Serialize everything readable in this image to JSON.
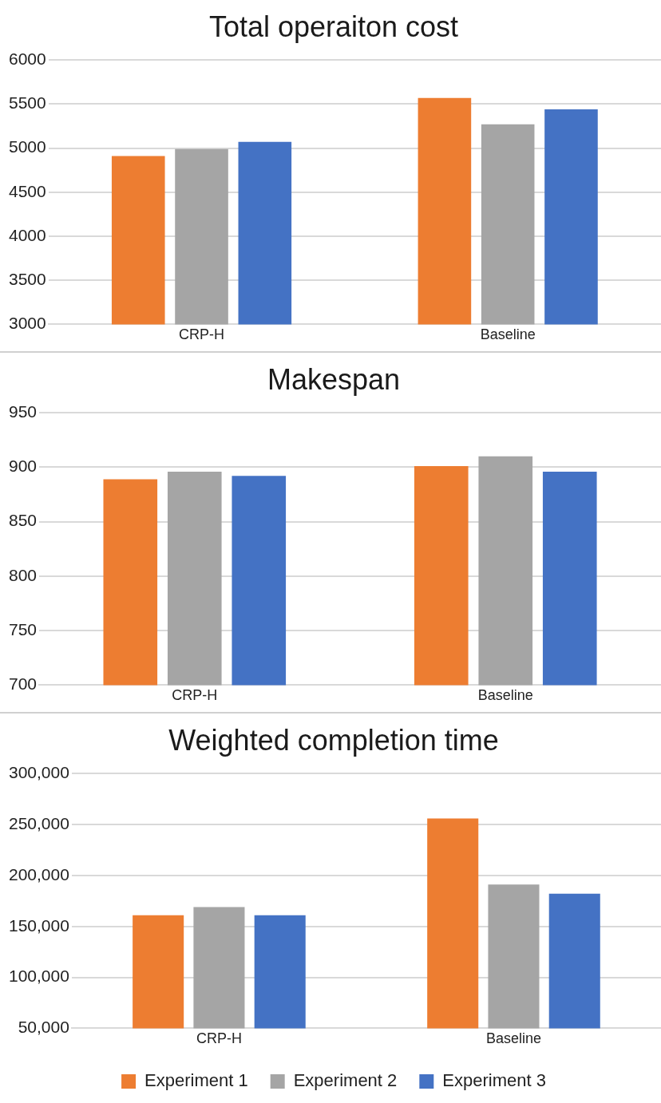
{
  "chart_data": [
    {
      "type": "bar",
      "title": "Total operaiton cost",
      "categories": [
        "CRP-H",
        "Baseline"
      ],
      "series": [
        {
          "color": "#ed7d31",
          "values": [
            4910,
            5570
          ]
        },
        {
          "color": "#a5a5a5",
          "values": [
            4990,
            5270
          ]
        },
        {
          "color": "#4472c4",
          "values": [
            5070,
            5440
          ]
        }
      ],
      "ylim": [
        3000,
        6000
      ],
      "yticks": [
        3000,
        3500,
        4000,
        4500,
        5000,
        5500,
        6000
      ],
      "grid": "y",
      "legend": false
    },
    {
      "type": "bar",
      "title": "Makespan",
      "categories": [
        "CRP-H",
        "Baseline"
      ],
      "series": [
        {
          "color": "#ed7d31",
          "values": [
            889,
            901
          ]
        },
        {
          "color": "#a5a5a5",
          "values": [
            896,
            910
          ]
        },
        {
          "color": "#4472c4",
          "values": [
            892,
            896
          ]
        }
      ],
      "ylim": [
        700,
        950
      ],
      "yticks": [
        700,
        750,
        800,
        850,
        900,
        950
      ],
      "grid": "y",
      "legend": false
    },
    {
      "type": "bar",
      "title": "Weighted completion time",
      "categories": [
        "CRP-H",
        "Baseline"
      ],
      "series": [
        {
          "name": "Experiment 1",
          "color": "#ed7d31",
          "values": [
            161000,
            256000
          ]
        },
        {
          "name": "Experiment 2",
          "color": "#a5a5a5",
          "values": [
            169000,
            191000
          ]
        },
        {
          "name": "Experiment 3",
          "color": "#4472c4",
          "values": [
            161000,
            182000
          ]
        }
      ],
      "ylim": [
        50000,
        300000
      ],
      "yticks": [
        {
          "value": 50000,
          "label": "50,000"
        },
        {
          "value": 100000,
          "label": "100,000"
        },
        {
          "value": 150000,
          "label": "150,000"
        },
        {
          "value": 200000,
          "label": "200,000"
        },
        {
          "value": 250000,
          "label": "250,000"
        },
        {
          "value": 300000,
          "label": "300,000"
        }
      ],
      "grid": "y",
      "legend": "bottom"
    }
  ]
}
